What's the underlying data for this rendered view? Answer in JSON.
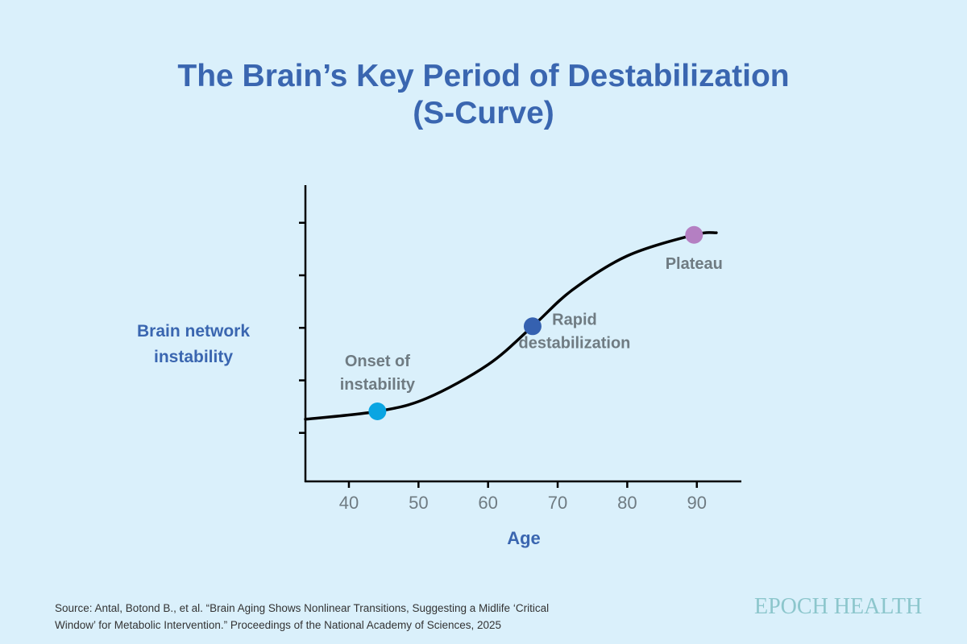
{
  "chart_data": {
    "type": "line",
    "title": [
      "The Brain’s Key Period of Destabilization",
      "(S-Curve)"
    ],
    "xlabel": "Age",
    "ylabel": [
      "Brain network",
      "instability"
    ],
    "xlim": [
      33.75,
      96.4
    ],
    "ylim": [
      0,
      5.72
    ],
    "x_ticks": [
      40,
      50,
      60,
      70,
      80,
      90
    ],
    "y_ticks": [
      1,
      2,
      3,
      4,
      5
    ],
    "y_tick_labels_shown": false,
    "grid": false,
    "curve": {
      "x": [
        33.75,
        44.1,
        51.2,
        60,
        66.4,
        72.1,
        80,
        89.6,
        92.8
      ],
      "y": [
        1.26,
        1.41,
        1.66,
        2.3,
        3.03,
        3.72,
        4.37,
        4.77,
        4.81
      ],
      "color": "#000000"
    },
    "annotations": [
      {
        "x": 44.1,
        "y": 1.41,
        "label": [
          "Onset of",
          "instability"
        ],
        "color": "#0aa5e2"
      },
      {
        "x": 66.4,
        "y": 3.03,
        "label": [
          "Rapid",
          "destabilization"
        ],
        "color": "#3561b0"
      },
      {
        "x": 89.6,
        "y": 4.77,
        "label": [
          "Plateau"
        ],
        "color": "#b47fc2"
      }
    ]
  },
  "source": [
    "Source: Antal, Botond B., et al. “Brain Aging Shows Nonlinear Transitions, Suggesting a Midlife ‘Critical",
    "Window’ for Metabolic Intervention.” Proceedings of the National Academy of Sciences, 2025"
  ],
  "brand": "EPOCH HEALTH",
  "colors": {
    "background": "#daf0fb",
    "title": "#3a66b0",
    "annotation_text": "#6f7b82",
    "brand": "#8cc6cc"
  }
}
